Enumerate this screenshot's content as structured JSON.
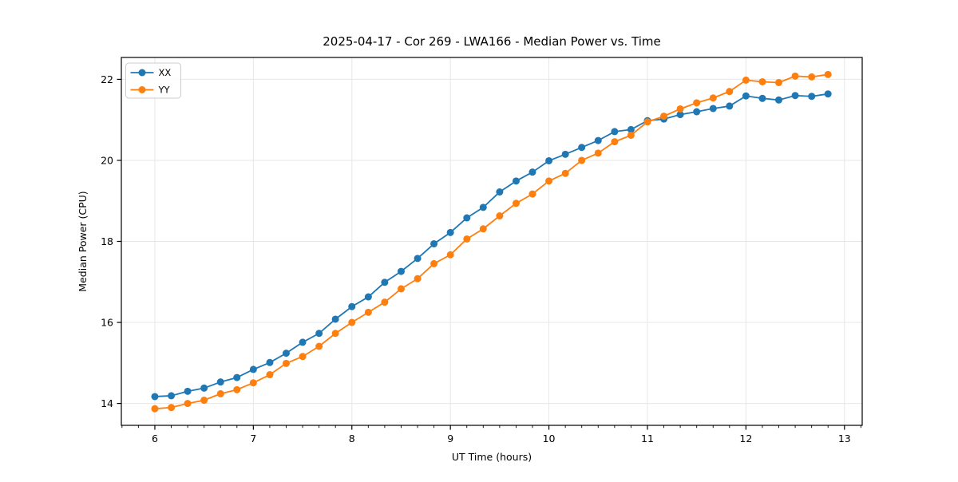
{
  "figure": {
    "background": "#ffffff"
  },
  "chart_data": {
    "type": "line",
    "title": "2025-04-17 - Cor 269 - LWA166 - Median Power vs. Time",
    "xlabel": "UT Time (hours)",
    "ylabel": "Median Power (CPU)",
    "xlim": [
      5.66,
      13.18
    ],
    "ylim": [
      13.46,
      22.54
    ],
    "xticks": [
      6,
      7,
      8,
      9,
      10,
      11,
      12,
      13
    ],
    "yticks": [
      14,
      16,
      18,
      20,
      22
    ],
    "x_minor_step": 0.166667,
    "grid": true,
    "grid_color": "#e7e7e7",
    "legend_position": "upper left",
    "marker": "o",
    "x": [
      6.0,
      6.167,
      6.333,
      6.5,
      6.667,
      6.833,
      7.0,
      7.167,
      7.333,
      7.5,
      7.667,
      7.833,
      8.0,
      8.167,
      8.333,
      8.5,
      8.667,
      8.833,
      9.0,
      9.167,
      9.333,
      9.5,
      9.667,
      9.833,
      10.0,
      10.167,
      10.333,
      10.5,
      10.667,
      10.833,
      11.0,
      11.167,
      11.333,
      11.5,
      11.667,
      11.833,
      12.0,
      12.167,
      12.333,
      12.5,
      12.667,
      12.833
    ],
    "series": [
      {
        "name": "XX",
        "color": "#1f77b4",
        "values": [
          14.17,
          14.19,
          14.3,
          14.38,
          14.53,
          14.64,
          14.84,
          15.01,
          15.24,
          15.51,
          15.73,
          16.08,
          16.39,
          16.63,
          16.99,
          17.26,
          17.58,
          17.94,
          18.22,
          18.58,
          18.84,
          19.22,
          19.49,
          19.71,
          19.99,
          20.15,
          20.32,
          20.49,
          20.71,
          20.76,
          20.98,
          21.02,
          21.13,
          21.2,
          21.28,
          21.34,
          21.59,
          21.53,
          21.49,
          21.6,
          21.58,
          21.64
        ]
      },
      {
        "name": "YY",
        "color": "#ff7f0e",
        "values": [
          13.87,
          13.9,
          14.0,
          14.08,
          14.24,
          14.34,
          14.51,
          14.71,
          14.99,
          15.16,
          15.41,
          15.73,
          16.0,
          16.25,
          16.5,
          16.83,
          17.08,
          17.45,
          17.67,
          18.06,
          18.31,
          18.63,
          18.94,
          19.17,
          19.49,
          19.68,
          20.0,
          20.18,
          20.46,
          20.62,
          20.95,
          21.09,
          21.27,
          21.42,
          21.54,
          21.7,
          21.98,
          21.94,
          21.92,
          22.08,
          22.06,
          22.12
        ]
      }
    ]
  }
}
